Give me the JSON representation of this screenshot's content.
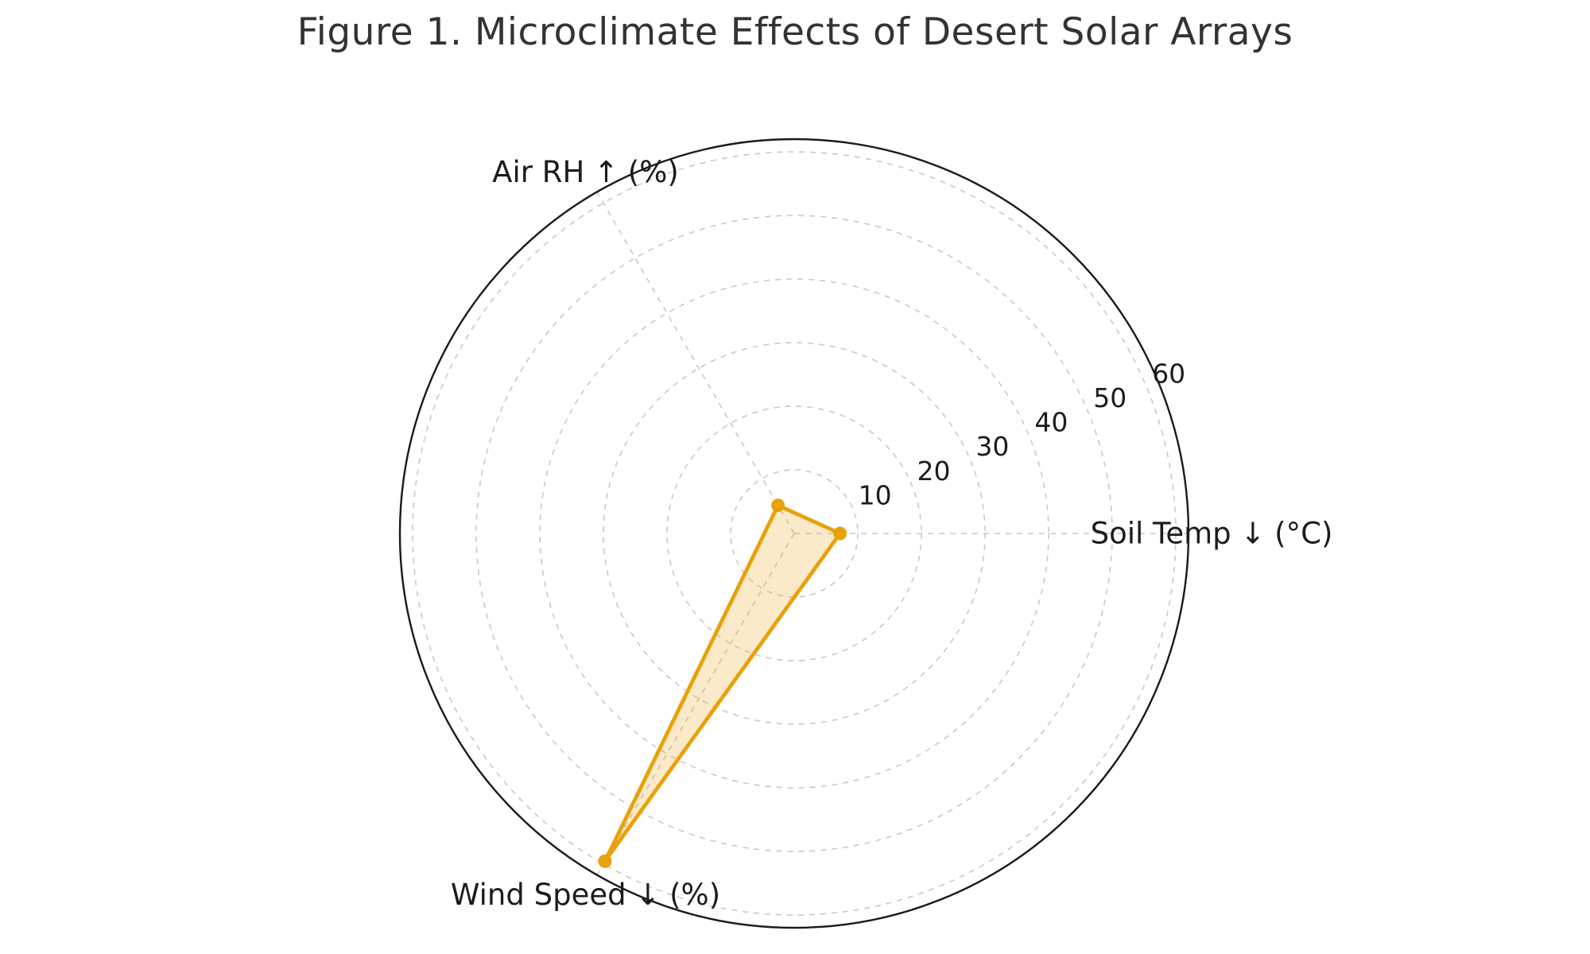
{
  "title": "Figure 1. Microclimate Effects of Desert Solar Arrays",
  "chart_data": {
    "type": "radar",
    "title": "Figure 1. Microclimate Effects of Desert Solar Arrays",
    "categories": [
      "Soil Temp ↓ (°C)",
      "Air RH ↑ (%)",
      "Wind Speed ↓ (%)"
    ],
    "category_angles_deg": [
      0,
      120,
      240
    ],
    "values": [
      7.2,
      5.1,
      59.5
    ],
    "radial_ticks": [
      10,
      20,
      30,
      40,
      50,
      60
    ],
    "radial_axis_max": 62,
    "radial_tick_label_angle_deg": 22.5,
    "grid": "dashed concentric circles with dashed spokes",
    "legend": false,
    "styles": {
      "series_color": "#E8A10B",
      "series_fill": "rgba(232,161,11,0.22)",
      "grid_color": "#C9C9C9",
      "outline_color": "#1A1A1A",
      "title_color": "#333333",
      "label_color": "#1C1C1C"
    }
  }
}
